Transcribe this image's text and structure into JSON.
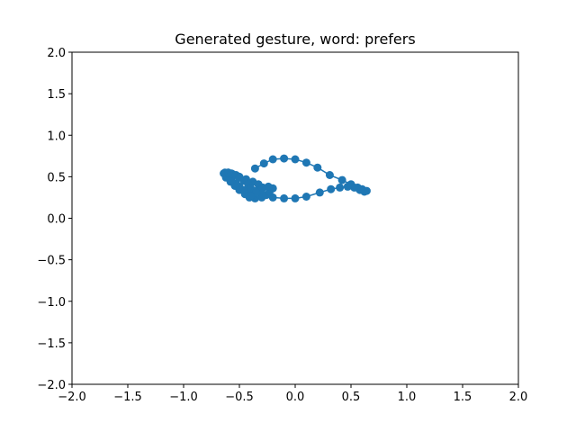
{
  "chart_data": {
    "type": "line",
    "title": "Generated gesture, word: prefers",
    "xlabel": "",
    "ylabel": "",
    "xlim": [
      -2.0,
      2.0
    ],
    "ylim": [
      -2.0,
      2.0
    ],
    "xticks": [
      -2.0,
      -1.5,
      -1.0,
      -0.5,
      0.0,
      0.5,
      1.0,
      1.5,
      2.0
    ],
    "yticks": [
      -2.0,
      -1.5,
      -1.0,
      -0.5,
      0.0,
      0.5,
      1.0,
      1.5,
      2.0
    ],
    "xtick_labels": [
      "−2.0",
      "−1.5",
      "−1.0",
      "−0.5",
      "0.0",
      "0.5",
      "1.0",
      "1.5",
      "2.0"
    ],
    "ytick_labels": [
      "−2.0",
      "−1.5",
      "−1.0",
      "−0.5",
      "0.0",
      "0.5",
      "1.0",
      "1.5",
      "2.0"
    ],
    "grid": false,
    "series": [
      {
        "color": "#1f77b4",
        "marker": "circle",
        "x": [
          -0.36,
          -0.28,
          -0.2,
          -0.1,
          0.0,
          0.1,
          0.2,
          0.31,
          0.42,
          0.5,
          0.56,
          0.6,
          0.64,
          0.62,
          0.58,
          0.53,
          0.47,
          0.4,
          0.32,
          0.22,
          0.1,
          0.0,
          -0.1,
          -0.2,
          -0.3,
          -0.36,
          -0.41,
          -0.45,
          -0.5,
          -0.54,
          -0.58,
          -0.62,
          -0.64,
          -0.6,
          -0.56,
          -0.5,
          -0.44,
          -0.38,
          -0.33,
          -0.29,
          -0.32,
          -0.37,
          -0.42,
          -0.46,
          -0.5,
          -0.53,
          -0.57,
          -0.6,
          -0.62,
          -0.63,
          -0.6,
          -0.57,
          -0.53,
          -0.5,
          -0.46,
          -0.42,
          -0.4,
          -0.36,
          -0.3,
          -0.26,
          -0.23,
          -0.2,
          -0.24,
          -0.3,
          -0.35,
          -0.4
        ],
        "y": [
          0.6,
          0.66,
          0.71,
          0.72,
          0.71,
          0.67,
          0.61,
          0.52,
          0.46,
          0.41,
          0.37,
          0.35,
          0.33,
          0.32,
          0.34,
          0.37,
          0.38,
          0.37,
          0.35,
          0.31,
          0.26,
          0.24,
          0.24,
          0.25,
          0.25,
          0.24,
          0.25,
          0.29,
          0.34,
          0.39,
          0.44,
          0.49,
          0.54,
          0.55,
          0.53,
          0.5,
          0.47,
          0.44,
          0.41,
          0.37,
          0.33,
          0.29,
          0.3,
          0.34,
          0.38,
          0.42,
          0.46,
          0.5,
          0.53,
          0.55,
          0.55,
          0.54,
          0.52,
          0.49,
          0.45,
          0.41,
          0.37,
          0.33,
          0.3,
          0.28,
          0.32,
          0.36,
          0.38,
          0.35,
          0.31,
          0.27
        ]
      }
    ]
  }
}
